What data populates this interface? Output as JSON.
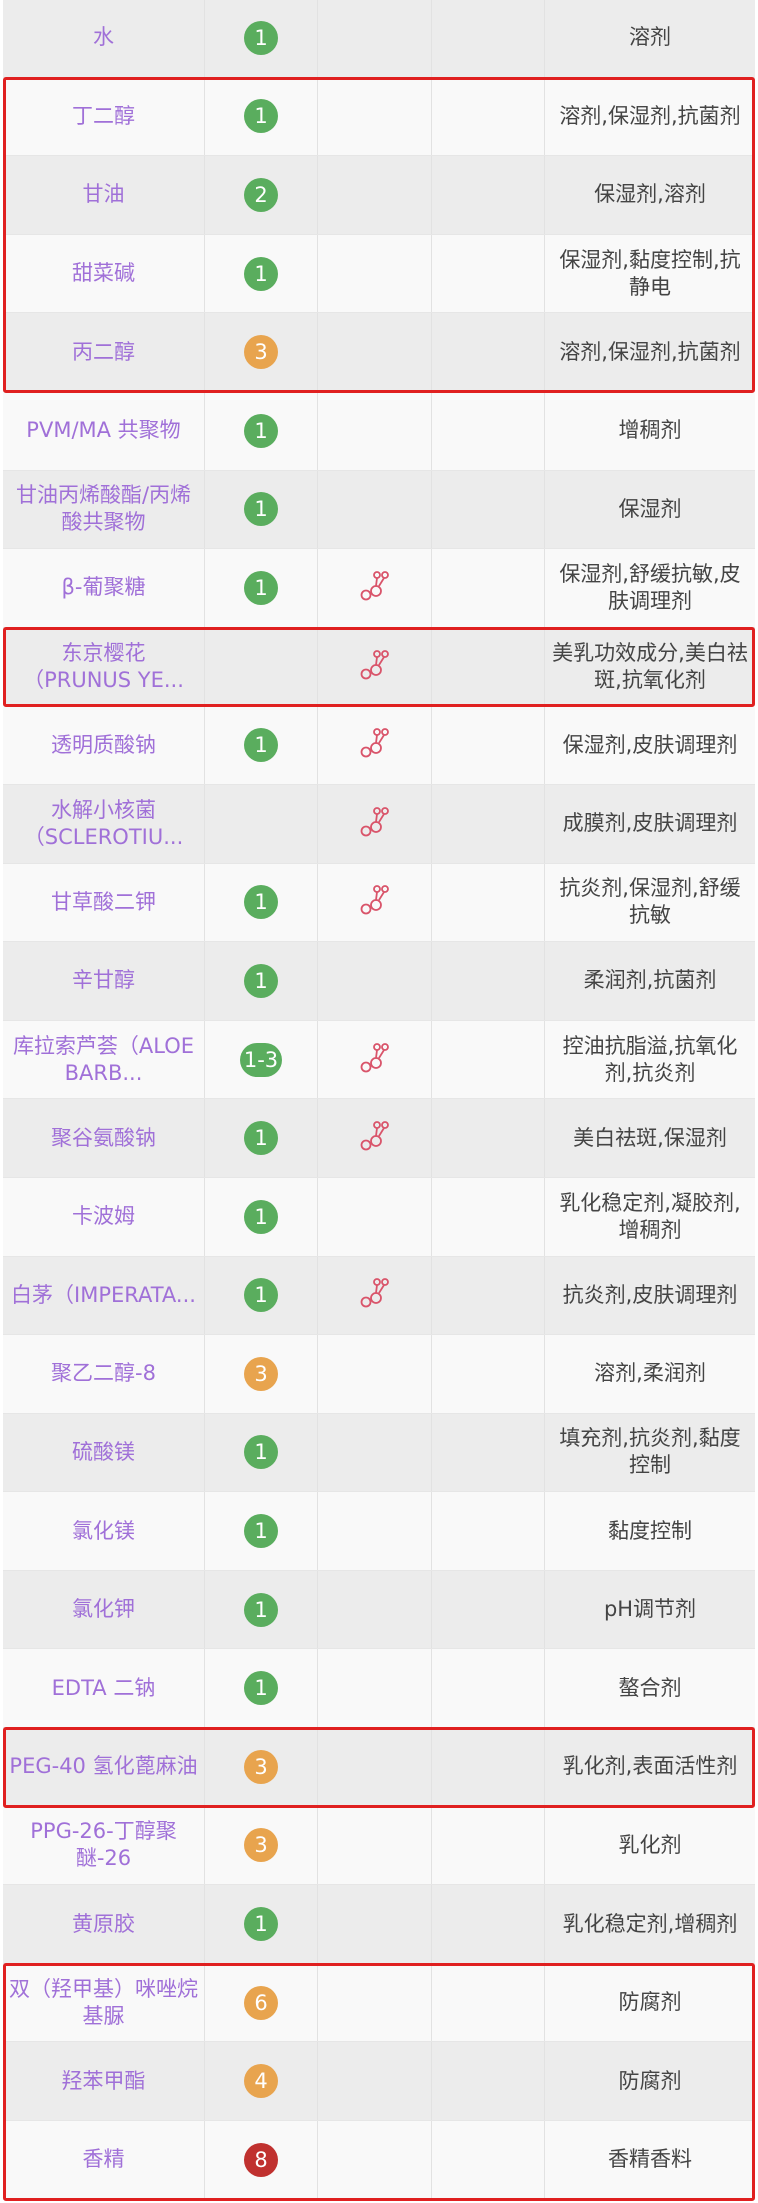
{
  "colors": {
    "name_text": "#a070d8",
    "func_text": "#444444",
    "badge_low": "#5aad5e",
    "badge_mid": "#e8a44e",
    "badge_high": "#c0312f",
    "highlight": "#e02020",
    "molecule_icon": "#d9546a"
  },
  "rows": [
    {
      "name": "水",
      "score": "1",
      "level": "low",
      "icon": false,
      "func": "溶剂"
    },
    {
      "name": "丁二醇",
      "score": "1",
      "level": "low",
      "icon": false,
      "func": "溶剂,保湿剂,抗菌剂",
      "hl": true
    },
    {
      "name": "甘油",
      "score": "2",
      "level": "low",
      "icon": false,
      "func": "保湿剂,溶剂",
      "hl": true
    },
    {
      "name": "甜菜碱",
      "score": "1",
      "level": "low",
      "icon": false,
      "func": "保湿剂,黏度控制,抗静电",
      "hl": true
    },
    {
      "name": "丙二醇",
      "score": "3",
      "level": "mid",
      "icon": false,
      "func": "溶剂,保湿剂,抗菌剂",
      "hl": true
    },
    {
      "name": "PVM/MA 共聚物",
      "score": "1",
      "level": "low",
      "icon": false,
      "func": "增稠剂"
    },
    {
      "name": "甘油丙烯酸酯/丙烯酸共聚物",
      "score": "1",
      "level": "low",
      "icon": false,
      "func": "保湿剂"
    },
    {
      "name": "β-葡聚糖",
      "score": "1",
      "level": "low",
      "icon": true,
      "func": "保湿剂,舒缓抗敏,皮肤调理剂"
    },
    {
      "name": "东京樱花（PRUNUS YE...",
      "score": "",
      "level": "",
      "icon": true,
      "func": "美乳功效成分,美白祛斑,抗氧化剂",
      "hl": true
    },
    {
      "name": "透明质酸钠",
      "score": "1",
      "level": "low",
      "icon": true,
      "func": "保湿剂,皮肤调理剂"
    },
    {
      "name": "水解小核菌（SCLEROTIU...",
      "score": "",
      "level": "",
      "icon": true,
      "func": "成膜剂,皮肤调理剂"
    },
    {
      "name": "甘草酸二钾",
      "score": "1",
      "level": "low",
      "icon": true,
      "func": "抗炎剂,保湿剂,舒缓抗敏"
    },
    {
      "name": "辛甘醇",
      "score": "1",
      "level": "low",
      "icon": false,
      "func": "柔润剂,抗菌剂"
    },
    {
      "name": "库拉索芦荟（ALOE BARB...",
      "score": "1-3",
      "level": "low",
      "icon": true,
      "func": "控油抗脂溢,抗氧化剂,抗炎剂"
    },
    {
      "name": "聚谷氨酸钠",
      "score": "1",
      "level": "low",
      "icon": true,
      "func": "美白祛斑,保湿剂"
    },
    {
      "name": "卡波姆",
      "score": "1",
      "level": "low",
      "icon": false,
      "func": "乳化稳定剂,凝胶剂,增稠剂"
    },
    {
      "name": "白茅（IMPERATA...",
      "score": "1",
      "level": "low",
      "icon": true,
      "func": "抗炎剂,皮肤调理剂"
    },
    {
      "name": "聚乙二醇-8",
      "score": "3",
      "level": "mid",
      "icon": false,
      "func": "溶剂,柔润剂"
    },
    {
      "name": "硫酸镁",
      "score": "1",
      "level": "low",
      "icon": false,
      "func": "填充剂,抗炎剂,黏度控制"
    },
    {
      "name": "氯化镁",
      "score": "1",
      "level": "low",
      "icon": false,
      "func": "黏度控制"
    },
    {
      "name": "氯化钾",
      "score": "1",
      "level": "low",
      "icon": false,
      "func": "pH调节剂"
    },
    {
      "name": "EDTA 二钠",
      "score": "1",
      "level": "low",
      "icon": false,
      "func": "螯合剂"
    },
    {
      "name": "PEG-40 氢化蓖麻油",
      "score": "3",
      "level": "mid",
      "icon": false,
      "func": "乳化剂,表面活性剂",
      "hl": true
    },
    {
      "name": "PPG-26-丁醇聚醚-26",
      "score": "3",
      "level": "mid",
      "icon": false,
      "func": "乳化剂"
    },
    {
      "name": "黄原胶",
      "score": "1",
      "level": "low",
      "icon": false,
      "func": "乳化稳定剂,增稠剂"
    },
    {
      "name": "双（羟甲基）咪唑烷基脲",
      "score": "6",
      "level": "mid",
      "icon": false,
      "func": "防腐剂",
      "hl": true
    },
    {
      "name": "羟苯甲酯",
      "score": "4",
      "level": "mid",
      "icon": false,
      "func": "防腐剂",
      "hl": true
    },
    {
      "name": "香精",
      "score": "8",
      "level": "high",
      "icon": false,
      "func": "香精香料",
      "hl": true
    }
  ]
}
